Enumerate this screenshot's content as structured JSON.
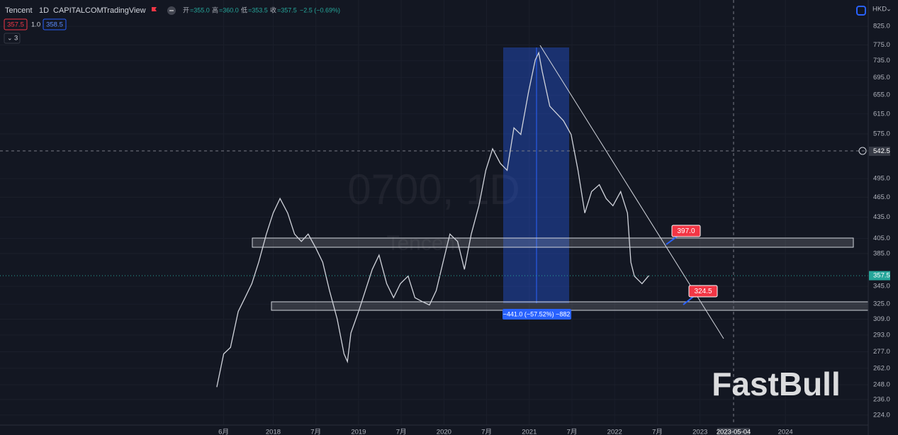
{
  "toolbar": {
    "symbol": "Tencent",
    "interval": "1D",
    "exchange": "CAPITALCOM",
    "source": "TradingView",
    "ohlc": [
      {
        "label": "开",
        "value": "=355.0"
      },
      {
        "label": "高",
        "value": "=360.0"
      },
      {
        "label": "低",
        "value": "=353.5"
      },
      {
        "label": "收",
        "value": "=357.5"
      }
    ],
    "change": "−2.5 (−0.69%)",
    "bid": "357.5",
    "spread": "1.0",
    "ask": "358.5",
    "indicators": "3"
  },
  "watermark": {
    "symbol": "0700, 1D",
    "name": "Tencent"
  },
  "brand": "FastBull",
  "annotations": {
    "upper_level": "397.0",
    "lower_level": "324.5",
    "measure": "−441.0 (−57.52%) −882",
    "crosshair_date": "2023-05-04"
  },
  "chart_data": {
    "type": "line",
    "currency": "HKD",
    "log_scale": true,
    "grid": true,
    "color": "#d1d4dc",
    "x": [
      2017.34,
      2017.42,
      2017.5,
      2017.59,
      2017.67,
      2017.75,
      2017.83,
      2017.92,
      2018.0,
      2018.08,
      2018.17,
      2018.25,
      2018.33,
      2018.41,
      2018.5,
      2018.58,
      2018.66,
      2018.75,
      2018.83,
      2018.87,
      2018.91,
      2019.0,
      2019.08,
      2019.16,
      2019.24,
      2019.33,
      2019.41,
      2019.49,
      2019.58,
      2019.66,
      2019.74,
      2019.83,
      2019.91,
      2019.99,
      2020.07,
      2020.16,
      2020.24,
      2020.32,
      2020.41,
      2020.49,
      2020.57,
      2020.66,
      2020.74,
      2020.82,
      2020.9,
      2020.99,
      2021.07,
      2021.11,
      2021.15,
      2021.24,
      2021.32,
      2021.4,
      2021.49,
      2021.57,
      2021.65,
      2021.73,
      2021.82,
      2021.9,
      2021.98,
      2022.07,
      2022.15,
      2022.19,
      2022.23,
      2022.32,
      2022.4
    ],
    "values": [
      246,
      275,
      281,
      317,
      332,
      348,
      374,
      411,
      441,
      463,
      441,
      411,
      401,
      411,
      392,
      374,
      340,
      309,
      275,
      268,
      295,
      317,
      340,
      365,
      383,
      348,
      332,
      348,
      357,
      332,
      328,
      324,
      340,
      374,
      411,
      401,
      365,
      411,
      452,
      509,
      547,
      521,
      509,
      587,
      574,
      661,
      737,
      755,
      710,
      631,
      616,
      601,
      574,
      509,
      441,
      474,
      485,
      463,
      452,
      474,
      441,
      374,
      357,
      348,
      357.5
    ],
    "xlim": [
      2014.8,
      2024.97
    ],
    "xticks": [
      {
        "value": 2017.42,
        "label": "6月"
      },
      {
        "value": 2018,
        "label": "2018"
      },
      {
        "value": 2018.5,
        "label": "7月"
      },
      {
        "value": 2019,
        "label": "2019"
      },
      {
        "value": 2019.5,
        "label": "7月"
      },
      {
        "value": 2020,
        "label": "2020"
      },
      {
        "value": 2020.5,
        "label": "7月"
      },
      {
        "value": 2021,
        "label": "2021"
      },
      {
        "value": 2021.5,
        "label": "7月"
      },
      {
        "value": 2022,
        "label": "2022"
      },
      {
        "value": 2022.5,
        "label": "7月"
      },
      {
        "value": 2023,
        "label": "2023"
      },
      {
        "value": 2024,
        "label": "2024"
      }
    ],
    "ylim": [
      216.6,
      901
    ],
    "yticks": [
      {
        "value": 825,
        "label": "825.0"
      },
      {
        "value": 775,
        "label": "775.0"
      },
      {
        "value": 735,
        "label": "735.0"
      },
      {
        "value": 695,
        "label": "695.0"
      },
      {
        "value": 655,
        "label": "655.0"
      },
      {
        "value": 615,
        "label": "615.0"
      },
      {
        "value": 575,
        "label": "575.0"
      },
      {
        "value": 495,
        "label": "495.0"
      },
      {
        "value": 465,
        "label": "465.0"
      },
      {
        "value": 435,
        "label": "435.0"
      },
      {
        "value": 405,
        "label": "405.0"
      },
      {
        "value": 385,
        "label": "385.0"
      },
      {
        "value": 345,
        "label": "345.0"
      },
      {
        "value": 325,
        "label": "325.0"
      },
      {
        "value": 309,
        "label": "309.0"
      },
      {
        "value": 293,
        "label": "293.0"
      },
      {
        "value": 277,
        "label": "277.0"
      },
      {
        "value": 262,
        "label": "262.0"
      },
      {
        "value": 248,
        "label": "248.0"
      },
      {
        "value": 236,
        "label": "236.0"
      },
      {
        "value": 224,
        "label": "224.0"
      }
    ],
    "last_price": 357.5,
    "crosshair_price": 542.5
  }
}
